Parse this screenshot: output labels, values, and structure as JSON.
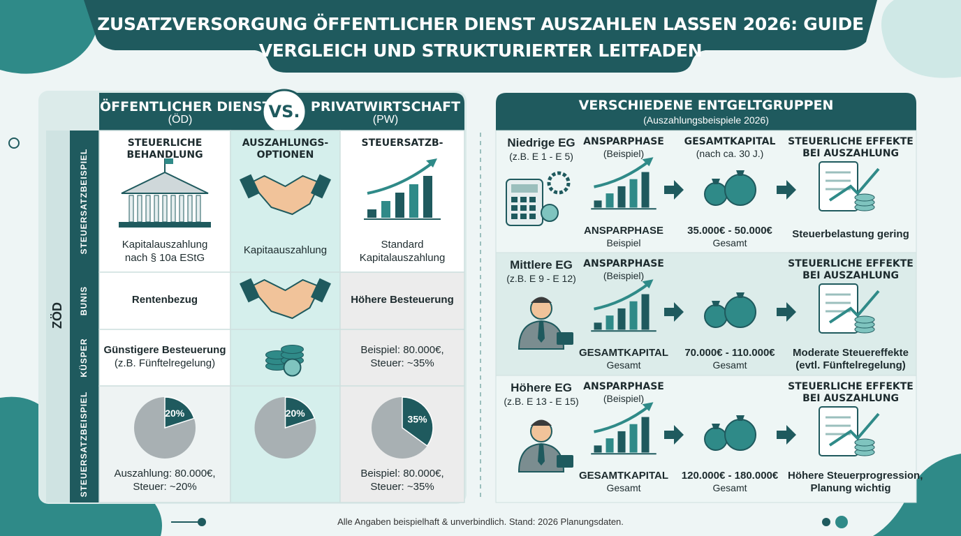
{
  "header": {
    "title_lines": [
      "ZUSATZVERSORGUNG ÖFFENTLICHER DIENST AUSZAHLEN LASSEN 2026: GUIDE",
      "VERGLEICH UND STRUKTURIERTER LEITFADEN"
    ]
  },
  "comparison": {
    "left_header": [
      "ÖFFENTLICHER DIENST",
      "(ÖD)"
    ],
    "vs": "VS.",
    "right_header": [
      "PRIVATWIRTSCHAFT",
      "(PW)"
    ],
    "side_label": "ZÖD",
    "row_labels": [
      "STEUERSATZBEISPIEL",
      "BUNIS",
      "KÜSPER",
      "STEUERSATZBEISPIEL"
    ],
    "rows": [
      [
        {
          "heading": [
            "STEUERLICHE",
            "BEHANDLUNG"
          ],
          "text": [
            "Kapitalauszahlung",
            "nach § 10a EStG"
          ]
        },
        {
          "heading": [
            "AUSZAHLUNGS-",
            "OPTIONEN"
          ],
          "text": [
            "Kapitaauszahlung"
          ]
        },
        {
          "heading": [
            "STEUERSATZB-"
          ],
          "text": [
            "Standard",
            "Kapitalauszahlung"
          ]
        }
      ],
      [
        {
          "text": [
            "Rentenbezug"
          ]
        },
        {},
        {
          "text": [
            "Höhere Besteuerung"
          ]
        }
      ],
      [
        {
          "text": [
            "Günstigere Besteuerung",
            "(z.B. Fünftelregelung)"
          ]
        },
        {},
        {
          "text": [
            "Beispiel: 80.000€,",
            "Steuer: ~35%"
          ]
        }
      ],
      [
        {
          "pie": {
            "value": 20,
            "label": "20%"
          },
          "text": [
            "Auszahlung: 80.000€,",
            "Steuer: ~20%"
          ]
        },
        {
          "pie": {
            "value": 20,
            "label": "20%"
          }
        },
        {
          "pie": {
            "value": 35,
            "label": "35%"
          },
          "text": [
            "Beispiel: 80.000€,",
            "Steuer: ~35%"
          ]
        }
      ]
    ]
  },
  "groups_panel": {
    "title": "VERSCHIEDENE ENTGELTGRUPPEN",
    "subtitle": "(Auszahlungsbeispiele 2026)",
    "groups": [
      {
        "name": "Niedrige EG",
        "range": "(z.B. E 1 - E 5)",
        "columns": [
          {
            "top": [
              "ANSPARPHASE",
              "(Beispiel)"
            ],
            "bottom": [
              "ANSPARPHASE",
              "Beispiel"
            ]
          },
          {
            "top": [
              "GESAMTKAPITAL",
              "(nach ca. 30 J.)"
            ],
            "bottom": [
              "35.000€ - 50.000€",
              "Gesamt"
            ]
          },
          {
            "top": [
              "STEUERLICHE EFFEKTE",
              "BEI AUSZAHLUNG"
            ],
            "bottom": [
              "Steuerbelastung gering"
            ]
          }
        ]
      },
      {
        "name": "Mittlere EG",
        "range": "(z.B. E 9 - E 12)",
        "columns": [
          {
            "top": [
              "ANSPARPHASE",
              "(Beispiel)"
            ],
            "bottom": [
              "GESAMTKAPITAL",
              "Gesamt"
            ]
          },
          {
            "bottom": [
              "70.000€ - 110.000€",
              "Gesamt"
            ]
          },
          {
            "top": [
              "STEUERLICHE EFFEKTE",
              "BEI AUSZAHLUNG"
            ],
            "bottom": [
              "Moderate Steuereffekte",
              "(evtl. Fünftelregelung)"
            ]
          }
        ]
      },
      {
        "name": "Höhere EG",
        "range": "(z.B. E 13 - E 15)",
        "columns": [
          {
            "top": [
              "ANSPARPHASE",
              "(Beispiel)"
            ],
            "bottom": [
              "GESAMTKAPITAL",
              "Gesamt"
            ]
          },
          {
            "bottom": [
              "120.000€ - 180.000€",
              "Gesamt"
            ]
          },
          {
            "top": [
              "STEUERLICHE EFFEKTE",
              "BEI AUSZAHLUNG"
            ],
            "bottom": [
              "Höhere Steuerprogression,",
              "Planung wichtig"
            ]
          }
        ]
      }
    ]
  },
  "footer": "Alle Angaben beispielhaft & unverbindlich. Stand: 2026 Planungsdaten."
}
